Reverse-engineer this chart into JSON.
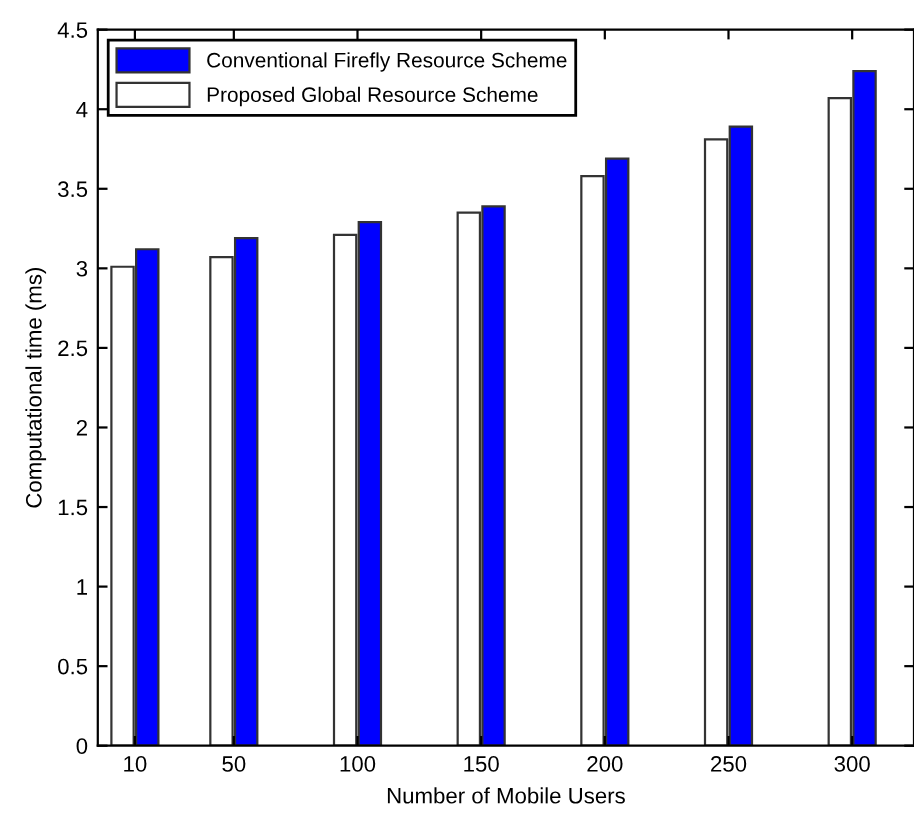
{
  "chart_data": {
    "type": "bar",
    "xlabel": "Number of Mobile Users",
    "ylabel": "Computational time (ms)",
    "x": [
      10,
      50,
      100,
      150,
      200,
      250,
      300
    ],
    "series": [
      {
        "name": "Proposed Global Resource Scheme",
        "color": "#ffffff",
        "values": [
          3.01,
          3.07,
          3.21,
          3.35,
          3.58,
          3.81,
          4.07
        ]
      },
      {
        "name": "Conventional Firefly Resource Scheme",
        "color": "#0000ff",
        "values": [
          3.12,
          3.19,
          3.29,
          3.39,
          3.69,
          3.89,
          4.24
        ]
      }
    ],
    "xlim": [
      -5,
      325
    ],
    "xticks": [
      10,
      50,
      100,
      150,
      200,
      250,
      300
    ],
    "ylim": [
      0,
      4.5
    ],
    "yticks": [
      0,
      0.5,
      1,
      1.5,
      2,
      2.5,
      3,
      3.5,
      4,
      4.5
    ],
    "grid": false,
    "legend": "top left"
  }
}
